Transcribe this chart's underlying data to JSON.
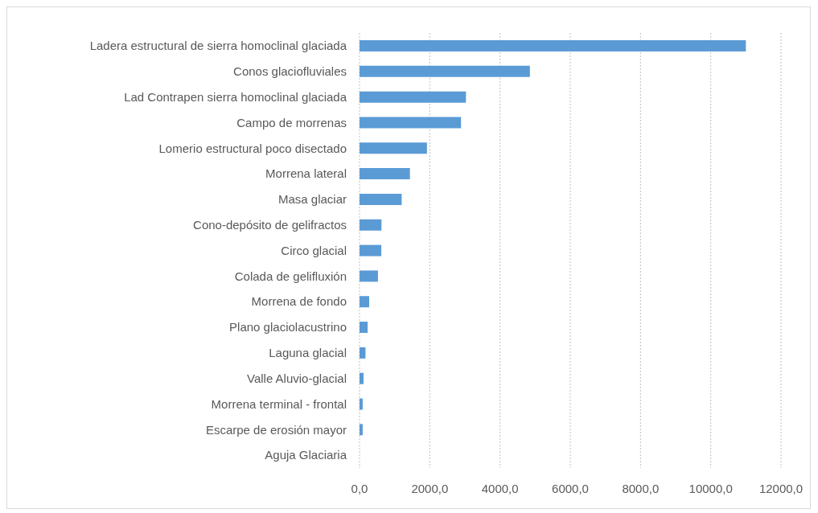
{
  "chart_data": {
    "type": "bar",
    "orientation": "horizontal",
    "categories": [
      "Ladera estructural de sierra homoclinal glaciada",
      "Conos glaciofluviales",
      "Lad Contrapen  sierra homoclinal glaciada",
      "Campo de morrenas",
      "Lomerio estructural  poco disectado",
      "Morrena lateral",
      "Masa glaciar",
      "Cono-depósito de gelifractos",
      "Circo glacial",
      "Colada de gelifluxión",
      "Morrena de fondo",
      "Plano glaciolacustrino",
      "Laguna glacial",
      "Valle Aluvio-glacial",
      "Morrena terminal - frontal",
      "Escarpe de erosión mayor",
      "Aguja Glaciaria"
    ],
    "values": [
      11000,
      4850,
      3030,
      2890,
      1920,
      1435,
      1200,
      625,
      620,
      525,
      275,
      230,
      170,
      115,
      90,
      90,
      0
    ],
    "color": "#5b9bd5",
    "xlim": [
      0,
      12000
    ],
    "xticks": [
      {
        "value": 0,
        "label": "0,0"
      },
      {
        "value": 2000,
        "label": "2000,0"
      },
      {
        "value": 4000,
        "label": "4000,0"
      },
      {
        "value": 6000,
        "label": "6000,0"
      },
      {
        "value": 8000,
        "label": "8000,0"
      },
      {
        "value": 10000,
        "label": "10000,0"
      },
      {
        "value": 12000,
        "label": "12000,0"
      }
    ],
    "grid": "x",
    "legend": false
  }
}
